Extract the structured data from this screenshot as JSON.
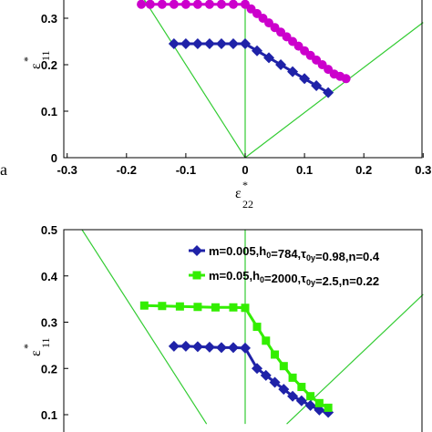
{
  "panel_label": "a",
  "chart_data": [
    {
      "type": "line",
      "xlabel": {
        "base": "ε",
        "sup": "*",
        "sub": "22"
      },
      "ylabel": {
        "base": "ε",
        "sup": "*",
        "sub": "11"
      },
      "xlim": [
        -0.3,
        0.3
      ],
      "ylim": [
        0,
        0.35
      ],
      "xticks": [
        "-0.3",
        "-0.2",
        "-0.1",
        "0",
        "0.1",
        "0.2",
        "0.3"
      ],
      "yticks": [
        "0",
        "0.1",
        "0.2",
        "0.3"
      ],
      "reference_lines": [
        {
          "color": "#33cc33",
          "points": [
            [
              0,
              0
            ],
            [
              0,
              0.35
            ]
          ]
        },
        {
          "color": "#33cc33",
          "points": [
            [
              0,
              0
            ],
            [
              -0.175,
              0.35
            ]
          ]
        },
        {
          "color": "#33cc33",
          "points": [
            [
              0,
              0
            ],
            [
              0.3,
              0.291
            ]
          ]
        }
      ],
      "series": [
        {
          "color": "#cc00cc",
          "marker": "circle",
          "x": [
            -0.175,
            -0.16,
            -0.14,
            -0.12,
            -0.1,
            -0.08,
            -0.06,
            -0.04,
            -0.02,
            0.0,
            0.01,
            0.02,
            0.03,
            0.04,
            0.05,
            0.06,
            0.07,
            0.08,
            0.09,
            0.1,
            0.11,
            0.12,
            0.13,
            0.14,
            0.15,
            0.16,
            0.17
          ],
          "y": [
            0.33,
            0.33,
            0.33,
            0.33,
            0.33,
            0.33,
            0.33,
            0.33,
            0.33,
            0.33,
            0.32,
            0.31,
            0.3,
            0.29,
            0.28,
            0.27,
            0.26,
            0.25,
            0.24,
            0.23,
            0.22,
            0.21,
            0.2,
            0.19,
            0.18,
            0.175,
            0.17
          ]
        },
        {
          "color": "#1f22a8",
          "marker": "diamond",
          "x": [
            -0.12,
            -0.1,
            -0.08,
            -0.06,
            -0.04,
            -0.02,
            0.0,
            0.02,
            0.04,
            0.06,
            0.08,
            0.1,
            0.12,
            0.14
          ],
          "y": [
            0.245,
            0.245,
            0.245,
            0.245,
            0.245,
            0.245,
            0.245,
            0.23,
            0.215,
            0.2,
            0.185,
            0.17,
            0.155,
            0.14
          ]
        }
      ]
    },
    {
      "type": "line",
      "ylabel": {
        "base": "ε",
        "sup": "*",
        "sub": "11"
      },
      "xlim": [
        -0.3,
        0.3
      ],
      "ylim": [
        0.08,
        0.5
      ],
      "yticks": [
        "0.1",
        "0.2",
        "0.3",
        "0.4",
        "0.5"
      ],
      "reference_lines": [
        {
          "color": "#33cc33",
          "points": [
            [
              0,
              0.08
            ],
            [
              0,
              0.5
            ]
          ]
        },
        {
          "color": "#33cc33",
          "points": [
            [
              -0.275,
              0.5
            ],
            [
              -0.065,
              0.08
            ]
          ]
        },
        {
          "color": "#33cc33",
          "points": [
            [
              0.07,
              0.08
            ],
            [
              0.3,
              0.36
            ]
          ]
        }
      ],
      "legend": {
        "position": "top-right"
      },
      "series": [
        {
          "name": "m=0.005,h_0=784,τ_0y=0.98,n=0.4",
          "label_parts": [
            [
              "m=0.005,h",
              "normal"
            ],
            [
              "0",
              "sub"
            ],
            [
              "=784,",
              "normal"
            ],
            [
              "τ",
              "normal"
            ],
            [
              "0y",
              "sub"
            ],
            [
              "=0.98,n=0.4",
              "normal"
            ]
          ],
          "color": "#1f22a8",
          "marker": "diamond",
          "x": [
            -0.12,
            -0.1,
            -0.08,
            -0.06,
            -0.04,
            -0.02,
            0.0,
            0.02,
            0.035,
            0.05,
            0.065,
            0.08,
            0.095,
            0.11,
            0.125,
            0.14
          ],
          "y": [
            0.248,
            0.248,
            0.247,
            0.246,
            0.245,
            0.245,
            0.244,
            0.2,
            0.185,
            0.17,
            0.155,
            0.14,
            0.13,
            0.12,
            0.11,
            0.105
          ]
        },
        {
          "name": "m=0.05,h_0=2000,τ_0y=2.5,n=0.22",
          "label_parts": [
            [
              "m=0.05,h",
              "normal"
            ],
            [
              "0",
              "sub"
            ],
            [
              "=2000,",
              "normal"
            ],
            [
              "τ",
              "normal"
            ],
            [
              "0y",
              "sub"
            ],
            [
              "=2.5,n=0.22",
              "normal"
            ]
          ],
          "color": "#33ee00",
          "marker": "square",
          "x": [
            -0.17,
            -0.14,
            -0.11,
            -0.08,
            -0.05,
            -0.02,
            0.0,
            0.02,
            0.035,
            0.05,
            0.065,
            0.08,
            0.095,
            0.11,
            0.125,
            0.14
          ],
          "y": [
            0.336,
            0.335,
            0.334,
            0.333,
            0.332,
            0.332,
            0.331,
            0.29,
            0.26,
            0.23,
            0.205,
            0.18,
            0.16,
            0.14,
            0.125,
            0.115
          ]
        }
      ]
    }
  ]
}
